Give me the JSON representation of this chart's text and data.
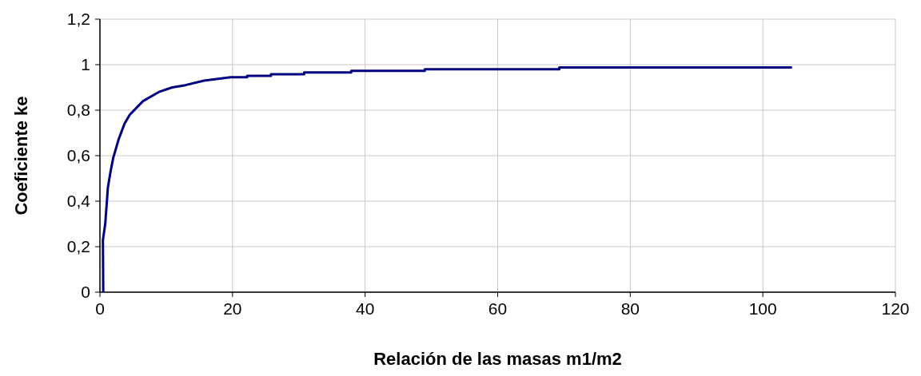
{
  "chart_data": {
    "type": "line",
    "xlabel": "Relación de las masas m1/m2",
    "ylabel": "Coeficiente ke",
    "xlim": [
      0,
      120
    ],
    "xticks": [
      0,
      20,
      40,
      60,
      80,
      100,
      120
    ],
    "ylim": [
      0,
      1.2
    ],
    "yticks": [
      {
        "value": 0,
        "label": "0"
      },
      {
        "value": 0.2,
        "label": "0,2"
      },
      {
        "value": 0.4,
        "label": "0,4"
      },
      {
        "value": 0.6,
        "label": "0,6"
      },
      {
        "value": 0.8,
        "label": "0,8"
      },
      {
        "value": 1,
        "label": "1"
      },
      {
        "value": 1.2,
        "label": "1,2"
      }
    ],
    "grid": true,
    "marker": "none",
    "line_style": "solid",
    "series": [
      {
        "color": "#000080",
        "x": [
          0.5,
          0.45,
          0.8,
          1.2,
          1.6,
          2.0,
          2.8,
          3.7,
          4.5,
          6.5,
          8.9,
          10.9,
          12.9,
          15.7,
          19.7,
          22.2,
          22.2,
          25.8,
          25.8,
          30.8,
          30.8,
          37.9,
          37.9,
          49.0,
          49.0,
          69.3,
          69.3,
          104.4
        ],
        "values": [
          0,
          0.23,
          0.3,
          0.46,
          0.53,
          0.59,
          0.67,
          0.74,
          0.78,
          0.84,
          0.88,
          0.9,
          0.91,
          0.93,
          0.945,
          0.945,
          0.951,
          0.951,
          0.958,
          0.958,
          0.966,
          0.966,
          0.973,
          0.973,
          0.98,
          0.98,
          0.988,
          0.988
        ]
      }
    ]
  }
}
